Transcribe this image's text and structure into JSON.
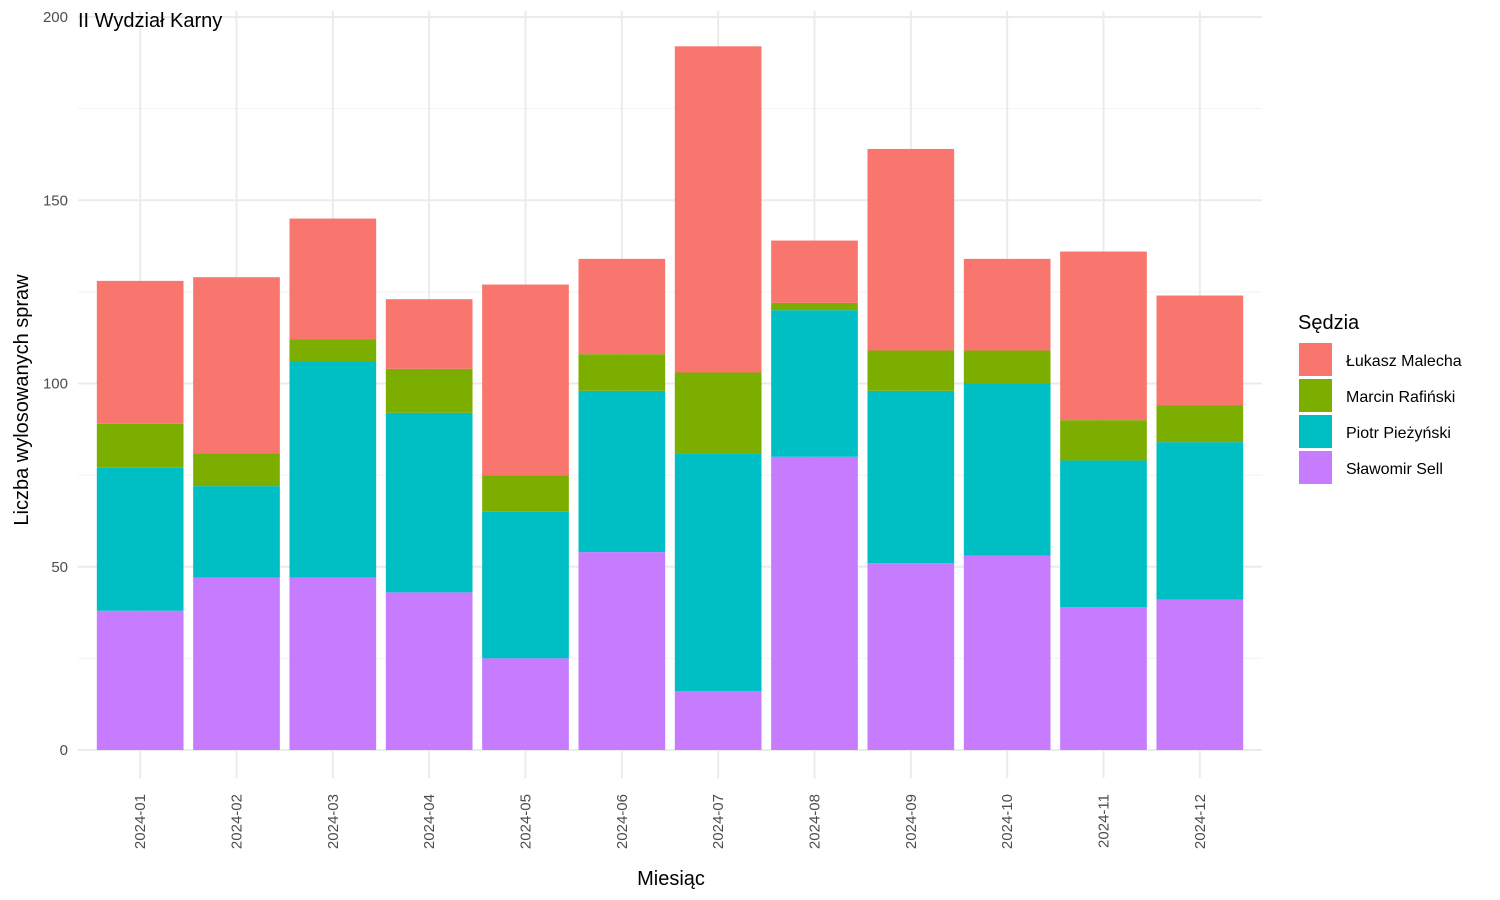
{
  "chart_data": {
    "type": "bar",
    "stacked": true,
    "title": "II Wydział Karny",
    "xlabel": "Miesiąc",
    "ylabel": "Liczba wylosowanych spraw",
    "ylim": [
      0,
      200
    ],
    "yticks": [
      0,
      50,
      100,
      150,
      200
    ],
    "grid": true,
    "legend": {
      "title": "Sędzia",
      "position": "right"
    },
    "categories": [
      "2024-01",
      "2024-02",
      "2024-03",
      "2024-04",
      "2024-05",
      "2024-06",
      "2024-07",
      "2024-08",
      "2024-09",
      "2024-10",
      "2024-11",
      "2024-12"
    ],
    "series": [
      {
        "name": "Sławomir Sell",
        "color": "#C77CFF",
        "values": [
          38,
          47,
          47,
          43,
          25,
          54,
          16,
          80,
          51,
          53,
          39,
          41
        ]
      },
      {
        "name": "Piotr Pieżyński",
        "color": "#00BFC4",
        "values": [
          39,
          25,
          59,
          49,
          40,
          44,
          65,
          40,
          47,
          47,
          40,
          43
        ]
      },
      {
        "name": "Marcin Rafiński",
        "color": "#7CAE00",
        "values": [
          12,
          9,
          6,
          12,
          10,
          10,
          22,
          2,
          11,
          9,
          11,
          10
        ]
      },
      {
        "name": "Łukasz Malecha",
        "color": "#F8766D",
        "values": [
          39,
          48,
          33,
          19,
          52,
          26,
          89,
          17,
          55,
          25,
          46,
          30
        ]
      }
    ],
    "legend_order": [
      "Łukasz Malecha",
      "Marcin Rafiński",
      "Piotr Pieżyński",
      "Sławomir Sell"
    ]
  }
}
